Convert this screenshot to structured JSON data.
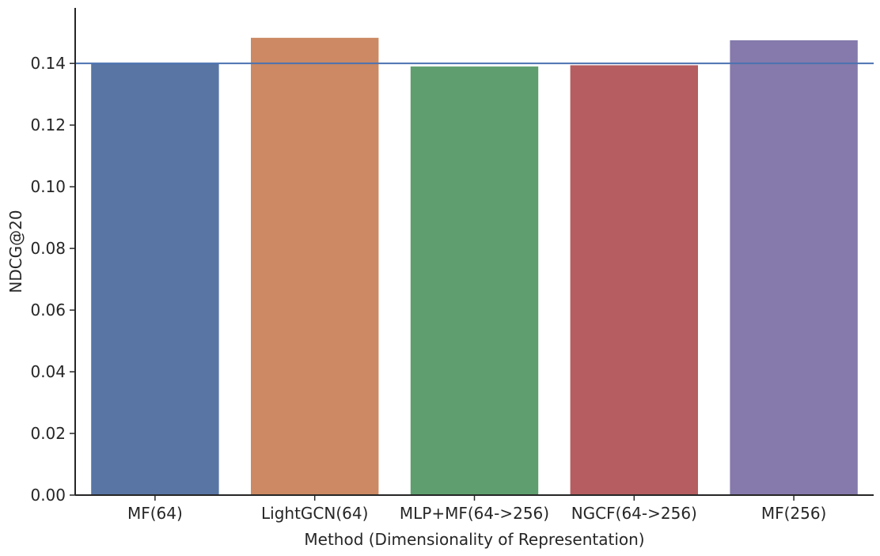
{
  "chart_data": {
    "type": "bar",
    "title": "",
    "xlabel": "Method (Dimensionality of Representation)",
    "ylabel": "NDCG@20",
    "categories": [
      "MF(64)",
      "LightGCN(64)",
      "MLP+MF(64->256)",
      "NGCF(64->256)",
      "MF(256)"
    ],
    "values": [
      0.14,
      0.1483,
      0.139,
      0.1394,
      0.1475
    ],
    "colors": [
      "#5875a4",
      "#cc8963",
      "#5f9e6e",
      "#b55d60",
      "#857aab"
    ],
    "ylim": [
      0,
      0.158
    ],
    "yticks": [
      0.0,
      0.02,
      0.04,
      0.06,
      0.08,
      0.1,
      0.12,
      0.14
    ],
    "ytick_labels": [
      "0.00",
      "0.02",
      "0.04",
      "0.06",
      "0.08",
      "0.10",
      "0.12",
      "0.14"
    ],
    "reference_line": {
      "value": 0.14,
      "color": "#4c72b0"
    },
    "grid": false,
    "legend": "none"
  }
}
